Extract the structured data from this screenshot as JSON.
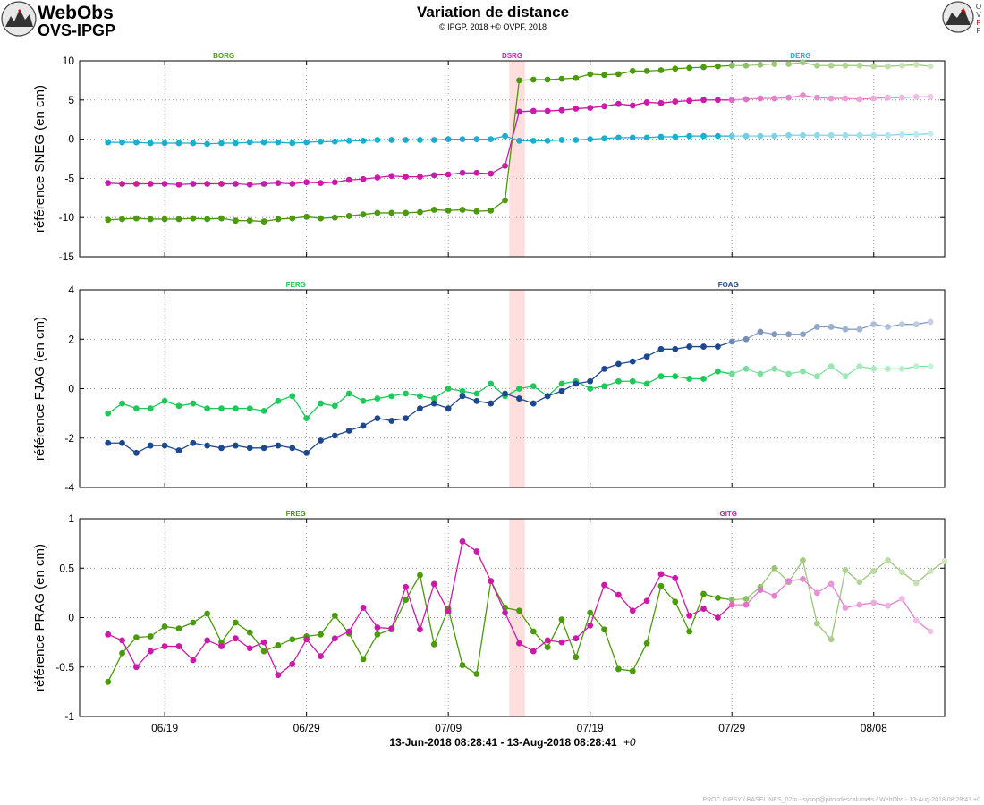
{
  "header": {
    "brand_line1": "WebObs",
    "brand_line2": "OVS-IPGP",
    "title": "Variation de distance",
    "subtitle": "© IPGP, 2018 +© OVPF, 2018",
    "right_logo_letters": [
      "O",
      "V",
      "P",
      "F"
    ]
  },
  "footer": {
    "time_range_label": "13-Jun-2018 08:28:41 - 13-Aug-2018 08:28:41",
    "time_offset": "+0",
    "credit": "PROC.GIPSY / BASELINES_02m - sysop@pitondescalumets / WebObs - 13-Aug-2018 08:28:41 +0"
  },
  "colors": {
    "green": "#4a9a0a",
    "magenta": "#cc1aa8",
    "cyan": "#1aaecf",
    "lime": "#1ec95a",
    "navy": "#1d4890",
    "event_band": "#ffdede",
    "grid": "#888888"
  },
  "chart_data": [
    {
      "type": "line",
      "ylabel": "référence SNEG (en cm)",
      "ylim": [
        -15,
        10
      ],
      "yticks": [
        -15,
        -10,
        -5,
        0,
        5,
        10
      ],
      "xlim": [
        "2018-06-13",
        "2018-08-13"
      ],
      "xticks": [
        {
          "date": "2018-06-19",
          "label": "06/19"
        },
        {
          "date": "2018-06-29",
          "label": "06/29"
        },
        {
          "date": "2018-07-09",
          "label": "07/09"
        },
        {
          "date": "2018-07-19",
          "label": "07/19"
        },
        {
          "date": "2018-07-29",
          "label": "07/29"
        },
        {
          "date": "2018-08-08",
          "label": "08/08"
        }
      ],
      "grid": true,
      "event_band": [
        "2018-07-13",
        "2018-07-14"
      ],
      "recent_from": "2018-07-29",
      "series": [
        {
          "name": "BORG",
          "color": "#4a9a0a",
          "values": [
            -10.3,
            -10.2,
            -10.1,
            -10.2,
            -10.2,
            -10.2,
            -10.1,
            -10.2,
            -10.1,
            -10.4,
            -10.4,
            -10.5,
            -10.2,
            -10.1,
            -9.9,
            -10.1,
            -10.0,
            -9.8,
            -9.6,
            -9.4,
            -9.4,
            -9.4,
            -9.3,
            -9.0,
            -9.1,
            -9.0,
            -9.2,
            -9.1,
            -7.8,
            7.5,
            7.6,
            7.6,
            7.7,
            7.8,
            8.3,
            8.2,
            8.3,
            8.7,
            8.7,
            8.8,
            9.0,
            9.1,
            9.2,
            9.3,
            9.4,
            9.4,
            9.5,
            9.6,
            9.6,
            9.8,
            9.4,
            9.4,
            9.4,
            9.4,
            9.3,
            9.3,
            9.4,
            9.5,
            9.3
          ]
        },
        {
          "name": "DSRG",
          "color": "#cc1aa8",
          "values": [
            -5.6,
            -5.7,
            -5.7,
            -5.7,
            -5.7,
            -5.8,
            -5.7,
            -5.7,
            -5.7,
            -5.7,
            -5.8,
            -5.7,
            -5.6,
            -5.7,
            -5.5,
            -5.6,
            -5.5,
            -5.2,
            -5.1,
            -4.9,
            -4.7,
            -4.8,
            -4.8,
            -4.6,
            -4.5,
            -4.3,
            -4.3,
            -4.4,
            -3.4,
            3.5,
            3.6,
            3.6,
            3.7,
            3.9,
            4.0,
            4.2,
            4.5,
            4.3,
            4.7,
            4.6,
            4.8,
            4.9,
            5.0,
            5.0,
            5.0,
            5.1,
            5.2,
            5.2,
            5.3,
            5.6,
            5.3,
            5.2,
            5.2,
            5.1,
            5.2,
            5.3,
            5.3,
            5.4,
            5.4
          ]
        },
        {
          "name": "DERG",
          "color": "#1aaecf",
          "values": [
            -0.4,
            -0.4,
            -0.4,
            -0.5,
            -0.5,
            -0.5,
            -0.5,
            -0.6,
            -0.5,
            -0.5,
            -0.4,
            -0.4,
            -0.4,
            -0.5,
            -0.4,
            -0.3,
            -0.3,
            -0.2,
            -0.2,
            -0.1,
            -0.1,
            -0.1,
            -0.1,
            -0.1,
            0.0,
            0.0,
            0.0,
            0.0,
            0.4,
            -0.2,
            -0.2,
            -0.2,
            -0.1,
            -0.1,
            0.0,
            0.1,
            0.2,
            0.2,
            0.2,
            0.3,
            0.3,
            0.4,
            0.4,
            0.4,
            0.4,
            0.4,
            0.4,
            0.4,
            0.5,
            0.5,
            0.5,
            0.5,
            0.5,
            0.5,
            0.5,
            0.5,
            0.6,
            0.6,
            0.7
          ]
        }
      ]
    },
    {
      "type": "line",
      "ylabel": "référence FJAG (en cm)",
      "ylim": [
        -4,
        4
      ],
      "yticks": [
        -4,
        -2,
        0,
        2,
        4
      ],
      "xlim": [
        "2018-06-13",
        "2018-08-13"
      ],
      "xticks": [
        {
          "date": "2018-06-19",
          "label": "06/19"
        },
        {
          "date": "2018-06-29",
          "label": "06/29"
        },
        {
          "date": "2018-07-09",
          "label": "07/09"
        },
        {
          "date": "2018-07-19",
          "label": "07/19"
        },
        {
          "date": "2018-07-29",
          "label": "07/29"
        },
        {
          "date": "2018-08-08",
          "label": "08/08"
        }
      ],
      "grid": true,
      "event_band": [
        "2018-07-13",
        "2018-07-14"
      ],
      "recent_from": "2018-07-29",
      "series": [
        {
          "name": "FERG",
          "color": "#1ec95a",
          "values": [
            -1.0,
            -0.6,
            -0.8,
            -0.8,
            -0.5,
            -0.7,
            -0.6,
            -0.8,
            -0.8,
            -0.8,
            -0.8,
            -0.9,
            -0.5,
            -0.3,
            -1.2,
            -0.6,
            -0.7,
            -0.2,
            -0.5,
            -0.4,
            -0.3,
            -0.2,
            -0.3,
            -0.4,
            0.0,
            -0.1,
            -0.2,
            0.2,
            -0.3,
            0.0,
            0.1,
            -0.3,
            0.2,
            0.3,
            0.0,
            0.1,
            0.3,
            0.3,
            0.2,
            0.5,
            0.5,
            0.4,
            0.4,
            0.7,
            0.6,
            0.8,
            0.6,
            0.8,
            0.6,
            0.7,
            0.5,
            0.9,
            0.5,
            0.9,
            0.8,
            0.8,
            0.8,
            0.9,
            0.9
          ]
        },
        {
          "name": "FOAG",
          "color": "#1d4890",
          "values": [
            -2.2,
            -2.2,
            -2.6,
            -2.3,
            -2.3,
            -2.5,
            -2.2,
            -2.3,
            -2.4,
            -2.3,
            -2.4,
            -2.4,
            -2.3,
            -2.4,
            -2.6,
            -2.1,
            -1.9,
            -1.7,
            -1.5,
            -1.2,
            -1.3,
            -1.2,
            -0.8,
            -0.6,
            -0.8,
            -0.3,
            -0.5,
            -0.6,
            -0.2,
            -0.4,
            -0.6,
            -0.3,
            -0.1,
            0.2,
            0.3,
            0.8,
            1.0,
            1.1,
            1.3,
            1.6,
            1.6,
            1.7,
            1.7,
            1.7,
            1.9,
            2.0,
            2.3,
            2.2,
            2.2,
            2.2,
            2.5,
            2.5,
            2.4,
            2.4,
            2.6,
            2.5,
            2.6,
            2.6,
            2.7
          ]
        }
      ]
    },
    {
      "type": "line",
      "ylabel": "référence PRAG (en cm)",
      "ylim": [
        -1,
        1
      ],
      "yticks": [
        -1,
        -0.5,
        0,
        0.5,
        1
      ],
      "xlim": [
        "2018-06-13",
        "2018-08-13"
      ],
      "xticks": [
        {
          "date": "2018-06-19",
          "label": "06/19"
        },
        {
          "date": "2018-06-29",
          "label": "06/29"
        },
        {
          "date": "2018-07-09",
          "label": "07/09"
        },
        {
          "date": "2018-07-19",
          "label": "07/19"
        },
        {
          "date": "2018-07-29",
          "label": "07/29"
        },
        {
          "date": "2018-08-08",
          "label": "08/08"
        }
      ],
      "grid": true,
      "event_band": [
        "2018-07-13",
        "2018-07-14"
      ],
      "recent_from": "2018-07-29",
      "series": [
        {
          "name": "FREG",
          "color": "#4a9a0a",
          "values": [
            -0.65,
            -0.36,
            -0.2,
            -0.19,
            -0.09,
            -0.11,
            -0.05,
            0.04,
            -0.25,
            -0.05,
            -0.15,
            -0.34,
            -0.28,
            -0.22,
            -0.19,
            -0.17,
            0.02,
            -0.16,
            -0.42,
            -0.17,
            -0.12,
            0.18,
            0.43,
            -0.27,
            0.09,
            -0.48,
            -0.57,
            0.37,
            0.1,
            0.07,
            -0.14,
            -0.3,
            -0.02,
            -0.4,
            0.05,
            -0.12,
            -0.52,
            -0.54,
            -0.26,
            0.32,
            0.16,
            -0.14,
            0.24,
            0.2,
            0.18,
            0.19,
            0.31,
            0.5,
            0.36,
            0.58,
            -0.06,
            -0.22,
            0.48,
            0.36,
            0.47,
            0.58,
            0.46,
            0.35,
            0.47,
            0.57
          ]
        },
        {
          "name": "GITG",
          "color": "#cc1aa8",
          "values": [
            -0.17,
            -0.23,
            -0.5,
            -0.34,
            -0.29,
            -0.29,
            -0.43,
            -0.23,
            -0.29,
            -0.21,
            -0.31,
            -0.25,
            -0.58,
            -0.47,
            -0.22,
            -0.39,
            -0.21,
            -0.14,
            0.1,
            -0.1,
            -0.11,
            0.31,
            -0.12,
            0.34,
            0.06,
            0.77,
            0.67,
            0.37,
            0.05,
            -0.26,
            -0.34,
            -0.23,
            -0.25,
            -0.21,
            -0.08,
            0.33,
            0.23,
            0.07,
            0.17,
            0.44,
            0.4,
            0.02,
            0.09,
            0.0,
            0.13,
            0.13,
            0.28,
            0.22,
            0.37,
            0.39,
            0.25,
            0.34,
            0.1,
            0.13,
            0.15,
            0.12,
            0.19,
            -0.03,
            -0.14
          ]
        }
      ]
    }
  ]
}
